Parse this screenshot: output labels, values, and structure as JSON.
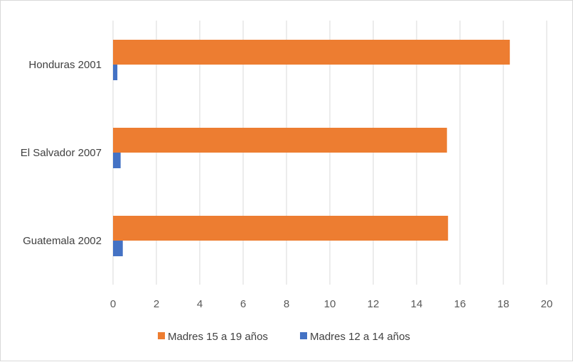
{
  "chart_data": {
    "type": "bar",
    "orientation": "horizontal",
    "categories": [
      "Honduras 2001",
      "El Salvador 2007",
      "Guatemala 2002"
    ],
    "series": [
      {
        "name": "Madres 15 a 19 años",
        "values": [
          18.3,
          15.4,
          15.45
        ],
        "color": "#ED7D31"
      },
      {
        "name": "Madres 12 a 14 años",
        "values": [
          0.2,
          0.35,
          0.45
        ],
        "color": "#4472C4"
      }
    ],
    "xlim": [
      0,
      20
    ],
    "xticks": [
      0,
      2,
      4,
      6,
      8,
      10,
      12,
      14,
      16,
      18,
      20
    ],
    "grid": true,
    "legend_position": "bottom",
    "gridline_color": "#d9d9d9"
  }
}
